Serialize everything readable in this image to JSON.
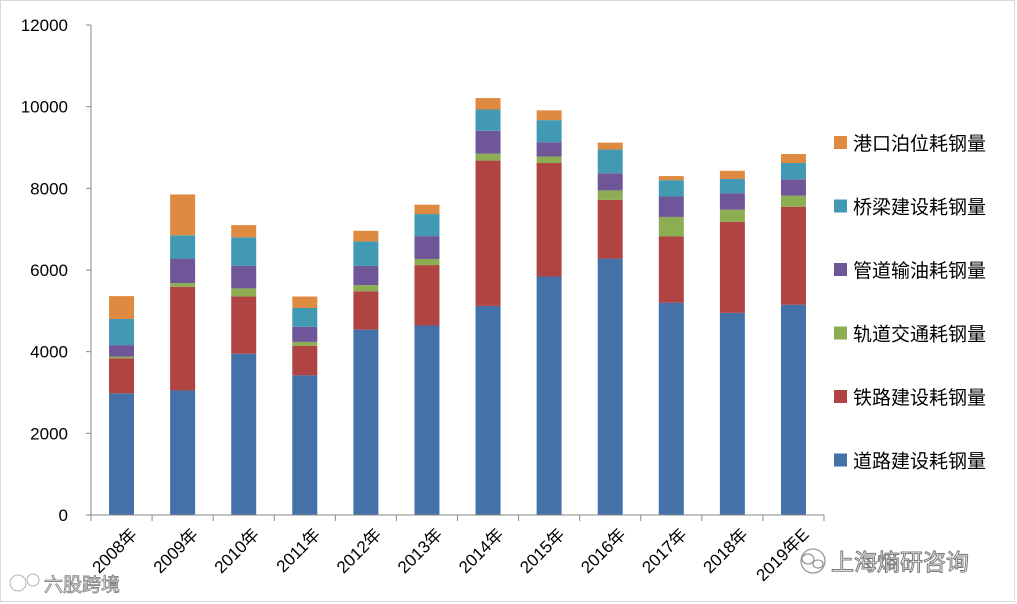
{
  "chart_data": {
    "type": "bar",
    "stacked": true,
    "title": "",
    "xlabel": "",
    "ylabel": "",
    "ylim": [
      0,
      12000
    ],
    "yticks": [
      0,
      2000,
      4000,
      6000,
      8000,
      10000,
      12000
    ],
    "grid": false,
    "legend_position": "right",
    "categories": [
      "2008年",
      "2009年",
      "2010年",
      "2011年",
      "2012年",
      "2013年",
      "2014年",
      "2015年",
      "2016年",
      "2017年",
      "2018年",
      "2019年E"
    ],
    "series": [
      {
        "name": "道路建设耗钢量",
        "color": "#4472a8",
        "values": [
          2980,
          3050,
          3950,
          3420,
          4540,
          4640,
          5120,
          5840,
          6280,
          5200,
          4950,
          5150
        ]
      },
      {
        "name": "铁路建设耗钢量",
        "color": "#b04442",
        "values": [
          860,
          2540,
          1400,
          720,
          940,
          1480,
          3560,
          2780,
          1440,
          1620,
          2230,
          2400
        ]
      },
      {
        "name": "轨道交通耗钢量",
        "color": "#8cad52",
        "values": [
          40,
          90,
          200,
          100,
          150,
          150,
          170,
          160,
          230,
          480,
          300,
          270
        ]
      },
      {
        "name": "管道输油耗钢量",
        "color": "#6e5698",
        "values": [
          280,
          600,
          550,
          370,
          470,
          560,
          560,
          350,
          420,
          500,
          400,
          400
        ]
      },
      {
        "name": "桥梁建设耗钢量",
        "color": "#4199b4",
        "values": [
          640,
          570,
          700,
          460,
          600,
          540,
          520,
          540,
          580,
          400,
          350,
          400
        ]
      },
      {
        "name": "港口泊位耗钢量",
        "color": "#de8a41",
        "values": [
          560,
          1000,
          300,
          280,
          260,
          230,
          280,
          240,
          170,
          100,
          200,
          220
        ]
      }
    ]
  },
  "watermarks": {
    "left_text": "六股跨境",
    "right_text": "上海熵研咨询"
  },
  "colors": {
    "axis": "#888888",
    "frame": "#d9d9d9"
  }
}
